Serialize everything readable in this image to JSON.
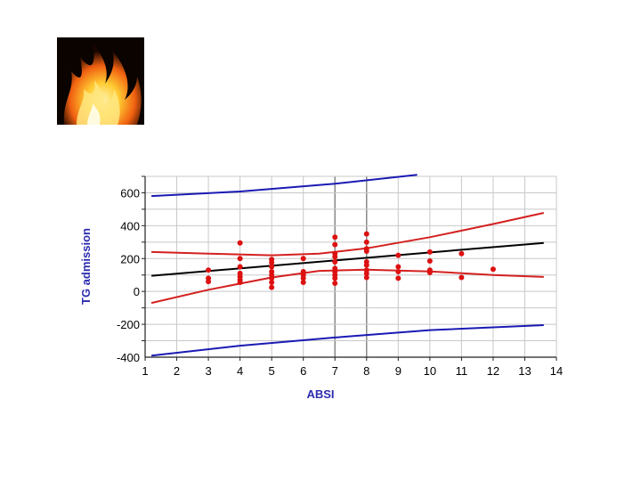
{
  "chart_data": {
    "type": "scatter",
    "xlabel": "ABSI",
    "ylabel": "TG admission",
    "xlim": [
      1,
      14
    ],
    "ylim": [
      -400,
      700
    ],
    "x_ticks": [
      1,
      2,
      3,
      4,
      5,
      6,
      7,
      8,
      9,
      10,
      11,
      12,
      13,
      14
    ],
    "y_ticks": [
      600,
      400,
      200,
      0,
      -200,
      -400
    ],
    "grid": true,
    "points": [
      {
        "x": 3,
        "y": 130
      },
      {
        "x": 3,
        "y": 80
      },
      {
        "x": 3,
        "y": 60
      },
      {
        "x": 4,
        "y": 295
      },
      {
        "x": 4,
        "y": 200
      },
      {
        "x": 4,
        "y": 150
      },
      {
        "x": 4,
        "y": 110
      },
      {
        "x": 4,
        "y": 90
      },
      {
        "x": 4,
        "y": 70
      },
      {
        "x": 4,
        "y": 55
      },
      {
        "x": 5,
        "y": 195
      },
      {
        "x": 5,
        "y": 175
      },
      {
        "x": 5,
        "y": 150
      },
      {
        "x": 5,
        "y": 120
      },
      {
        "x": 5,
        "y": 100
      },
      {
        "x": 5,
        "y": 80
      },
      {
        "x": 5,
        "y": 55
      },
      {
        "x": 5,
        "y": 25
      },
      {
        "x": 6,
        "y": 200
      },
      {
        "x": 6,
        "y": 120
      },
      {
        "x": 6,
        "y": 100
      },
      {
        "x": 6,
        "y": 80
      },
      {
        "x": 6,
        "y": 55
      },
      {
        "x": 7,
        "y": 330
      },
      {
        "x": 7,
        "y": 285
      },
      {
        "x": 7,
        "y": 230
      },
      {
        "x": 7,
        "y": 210
      },
      {
        "x": 7,
        "y": 180
      },
      {
        "x": 7,
        "y": 140
      },
      {
        "x": 7,
        "y": 120
      },
      {
        "x": 7,
        "y": 100
      },
      {
        "x": 7,
        "y": 80
      },
      {
        "x": 7,
        "y": 50
      },
      {
        "x": 8,
        "y": 350
      },
      {
        "x": 8,
        "y": 300
      },
      {
        "x": 8,
        "y": 260
      },
      {
        "x": 8,
        "y": 245
      },
      {
        "x": 8,
        "y": 180
      },
      {
        "x": 8,
        "y": 160
      },
      {
        "x": 8,
        "y": 130
      },
      {
        "x": 8,
        "y": 110
      },
      {
        "x": 8,
        "y": 85
      },
      {
        "x": 9,
        "y": 220
      },
      {
        "x": 9,
        "y": 150
      },
      {
        "x": 9,
        "y": 120
      },
      {
        "x": 9,
        "y": 80
      },
      {
        "x": 10,
        "y": 240
      },
      {
        "x": 10,
        "y": 185
      },
      {
        "x": 10,
        "y": 130
      },
      {
        "x": 10,
        "y": 115
      },
      {
        "x": 11,
        "y": 230
      },
      {
        "x": 11,
        "y": 85
      },
      {
        "x": 12,
        "y": 135
      }
    ],
    "lines": [
      {
        "role": "regression",
        "color": "#000000",
        "points": [
          [
            1.2,
            95
          ],
          [
            13.6,
            295
          ]
        ]
      },
      {
        "role": "confidence-upper",
        "color": "#d42020",
        "points": [
          [
            1.2,
            240
          ],
          [
            3,
            230
          ],
          [
            5,
            220
          ],
          [
            6.5,
            230
          ],
          [
            8,
            262
          ],
          [
            10,
            330
          ],
          [
            12,
            410
          ],
          [
            13.6,
            478
          ]
        ]
      },
      {
        "role": "confidence-lower",
        "color": "#d42020",
        "points": [
          [
            1.2,
            -70
          ],
          [
            3,
            10
          ],
          [
            5,
            85
          ],
          [
            6.5,
            125
          ],
          [
            8,
            132
          ],
          [
            10,
            122
          ],
          [
            12,
            100
          ],
          [
            13.6,
            88
          ]
        ]
      },
      {
        "role": "prediction-upper",
        "color": "#1a1ab4",
        "points": [
          [
            1.2,
            580
          ],
          [
            4,
            608
          ],
          [
            7,
            655
          ],
          [
            9.6,
            710
          ]
        ]
      },
      {
        "role": "prediction-lower",
        "color": "#1a1ab4",
        "points": [
          [
            1.2,
            -390
          ],
          [
            4,
            -330
          ],
          [
            7,
            -280
          ],
          [
            10,
            -235
          ],
          [
            13.6,
            -205
          ]
        ]
      }
    ],
    "colors": {
      "points": "#dd1111",
      "axis_title": "#2b2bb0"
    }
  }
}
